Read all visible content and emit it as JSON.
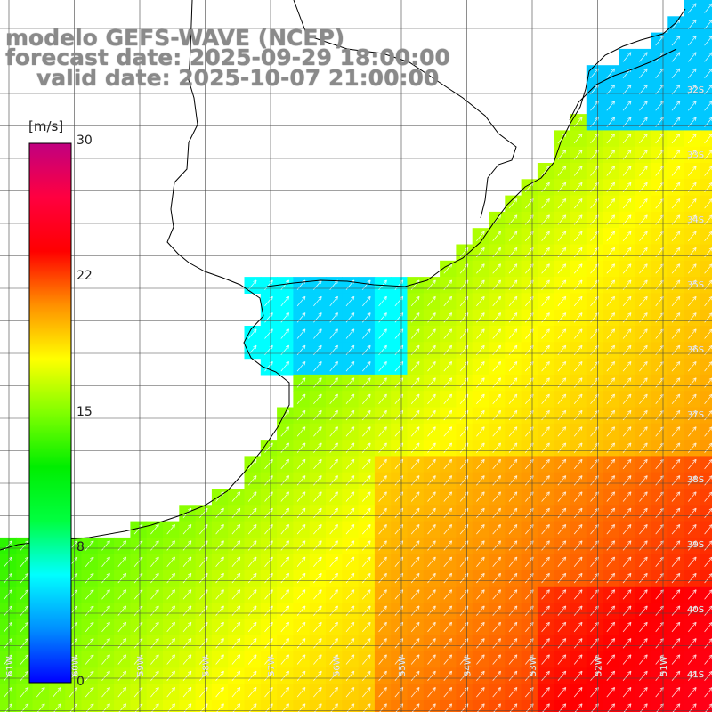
{
  "title": {
    "line1": "modelo GEFS-WAVE (NCEP)",
    "line2": "forecast date: 2025-09-29 18:00:00",
    "line3": "valid date: 2025-10-07 21:00:00"
  },
  "colorbar": {
    "unit": "[m/s]",
    "ticks": [
      "30",
      "22",
      "15",
      "8",
      "0"
    ],
    "colors": [
      "#0000ff",
      "#0090ff",
      "#00ffff",
      "#00ff40",
      "#00ee00",
      "#80ff00",
      "#ffff00",
      "#ff9000",
      "#ff0000",
      "#ff0040",
      "#c00080"
    ]
  },
  "map": {
    "lat_labels": [
      "32S",
      "33S",
      "34S",
      "35S",
      "36S",
      "37S",
      "38S",
      "39S",
      "40S",
      "41S"
    ],
    "lon_labels": [
      "61W",
      "60W",
      "59W",
      "58W",
      "57W",
      "56W",
      "55W",
      "54W",
      "53W",
      "52W",
      "51W"
    ],
    "land_color": "#ffffff",
    "grid_color": "#444444",
    "arrow_color": "#ffffff"
  }
}
